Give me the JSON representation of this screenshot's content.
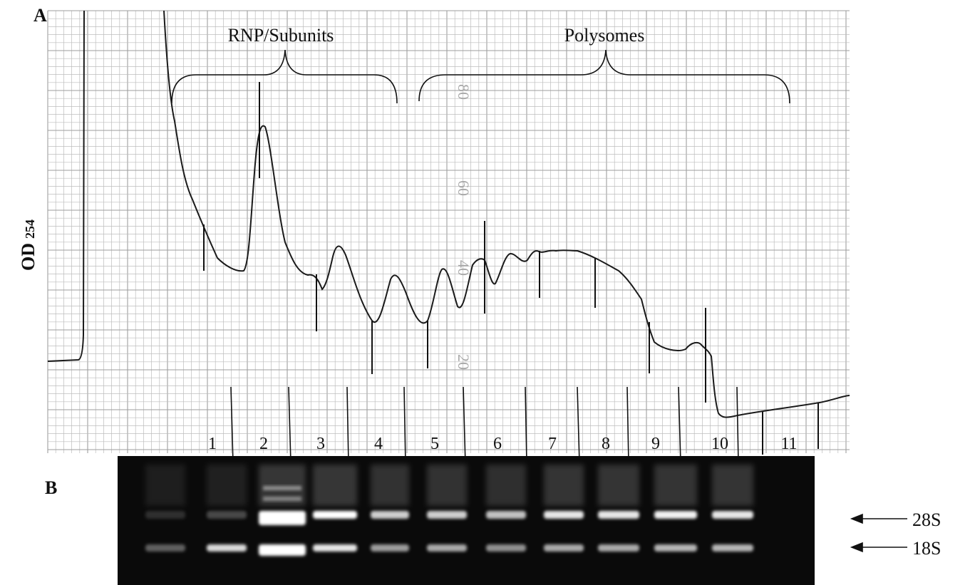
{
  "panel_a": {
    "label": "A",
    "y_axis_label": "OD",
    "y_axis_subscript": "254",
    "region_left": "RNP/Subunits",
    "region_right": "Polysomes",
    "grid_numbers": [
      "80",
      "60",
      "40",
      "20"
    ]
  },
  "fractions": [
    "1",
    "2",
    "3",
    "4",
    "5",
    "6",
    "7",
    "8",
    "9",
    "10",
    "11"
  ],
  "panel_b": {
    "label": "B",
    "bands": [
      {
        "name": "28S"
      },
      {
        "name": "18S"
      }
    ]
  },
  "colors": {
    "grid": "#bdbdbd",
    "grid_major": "#9e9e9e",
    "trace": "#1a1a1a",
    "gel_background": "#0a0a0a",
    "band": "#ffffff"
  }
}
